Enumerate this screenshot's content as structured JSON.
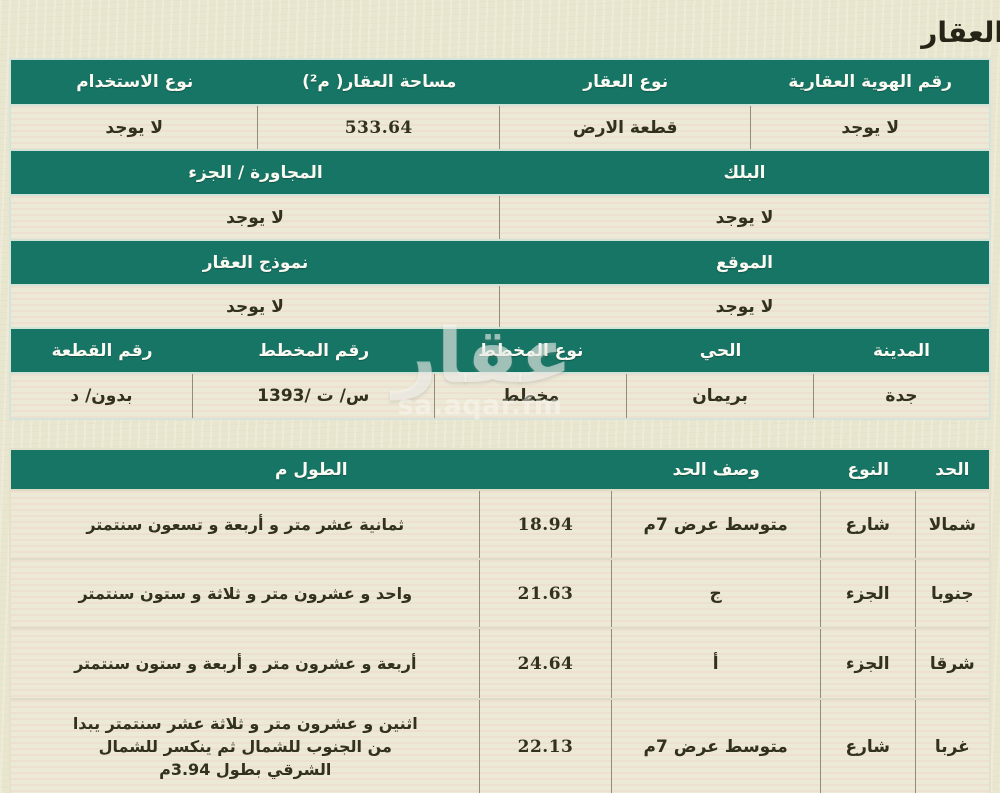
{
  "page_title": "العقار",
  "colors": {
    "header_teal": "#177565",
    "row_cream": "#ece9d6",
    "page_background": "#e9e6cf",
    "header_text": "#fafaf2",
    "value_text": "#32301f"
  },
  "watermark": {
    "brand": "عقار",
    "site": "sa.aqar.fm"
  },
  "property_table": {
    "rows": [
      {
        "type": "header",
        "cells": [
          "رقم الهوية العقارية",
          "نوع العقار",
          "مساحة العقار( م²)",
          "نوع الاستخدام"
        ]
      },
      {
        "type": "value",
        "cells": [
          "لا يوجد",
          "قطعة الارض",
          "533.64",
          "لا يوجد"
        ]
      },
      {
        "type": "header",
        "cells": [
          "البلك",
          "المجاورة / الجزء"
        ]
      },
      {
        "type": "value",
        "cells": [
          "لا يوجد",
          "لا يوجد"
        ]
      },
      {
        "type": "header",
        "cells": [
          "الموقع",
          "نموذج العقار"
        ]
      },
      {
        "type": "value",
        "cells": [
          "لا يوجد",
          "لا يوجد"
        ]
      },
      {
        "type": "header",
        "cells": [
          "المدينة",
          "الحي",
          "نوع المخطط",
          "رقم المخطط",
          "رقم القطعة"
        ]
      },
      {
        "type": "value",
        "cells": [
          "جدة",
          "بريمان",
          "مخطط",
          "س/ ت /1393",
          "بدون/ د"
        ]
      }
    ]
  },
  "boundaries_table": {
    "headers": [
      "الحد",
      "النوع",
      "وصف الحد",
      "الطول م"
    ],
    "rows": [
      {
        "side": "شمالا",
        "type": "شارع",
        "description": "متوسط عرض 7م",
        "length": "18.94",
        "length_words": "ثمانية عشر متر و أربعة و تسعون سنتمتر"
      },
      {
        "side": "جنوبا",
        "type": "الجزء",
        "description": "ج",
        "length": "21.63",
        "length_words": "واحد و عشرون متر و ثلاثة و ستون سنتمتر"
      },
      {
        "side": "شرقا",
        "type": "الجزء",
        "description": "أ",
        "length": "24.64",
        "length_words": "أربعة و عشرون متر و أربعة و ستون سنتمتر"
      },
      {
        "side": "غربا",
        "type": "شارع",
        "description": "متوسط عرض 7م",
        "length": "22.13",
        "length_words": "اثنين و عشرون متر و ثلاثة عشر سنتمتر يبدا من الجنوب للشمال ثم ينكسر للشمال الشرقي بطول 3.94م"
      }
    ]
  }
}
